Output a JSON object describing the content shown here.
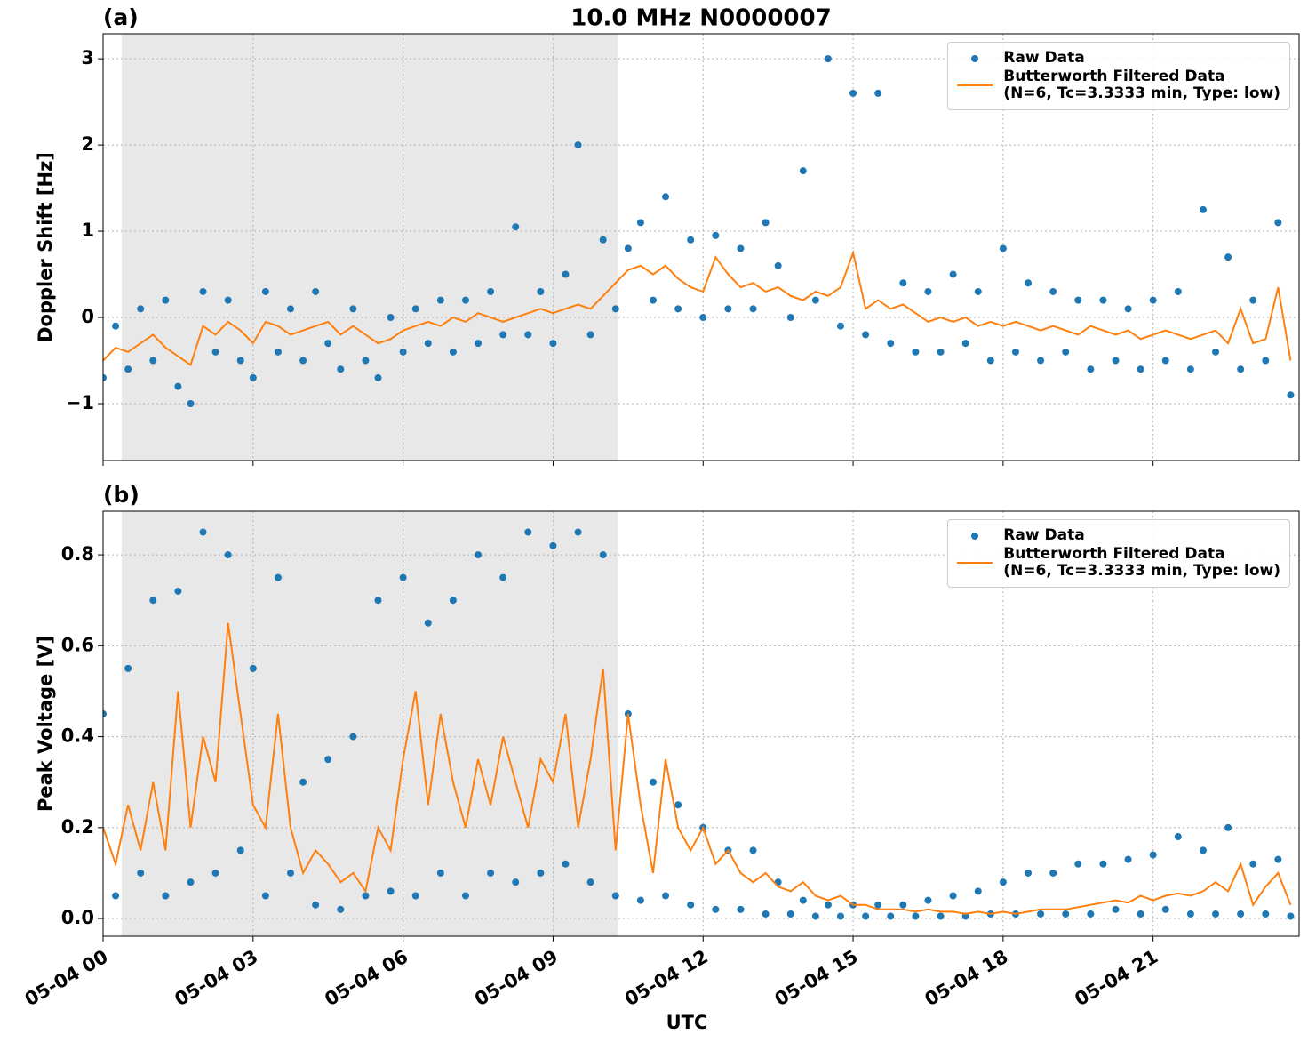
{
  "chart_data": [
    {
      "type": "scatter+line",
      "title": "10.0 MHz N0000007",
      "panel_label": "(a)",
      "ylabel": "Doppler Shift [Hz]",
      "xlim": [
        0,
        23.92
      ],
      "xticks": [
        0,
        3,
        6,
        9,
        12,
        15,
        18,
        21
      ],
      "ylim": [
        -1.66,
        3.29
      ],
      "yticks": [
        {
          "value": -1,
          "label": "−1"
        },
        0,
        1,
        2,
        3
      ],
      "grid": true,
      "legend": "upper right",
      "shaded_span": [
        0.37,
        10.3
      ],
      "shade_color": "#e8e8e8",
      "x": [
        0,
        0.25,
        0.5,
        0.75,
        1,
        1.25,
        1.5,
        1.75,
        2,
        2.25,
        2.5,
        2.75,
        3,
        3.25,
        3.5,
        3.75,
        4,
        4.25,
        4.5,
        4.75,
        5,
        5.25,
        5.5,
        5.75,
        6,
        6.25,
        6.5,
        6.75,
        7,
        7.25,
        7.5,
        7.75,
        8,
        8.25,
        8.5,
        8.75,
        9,
        9.25,
        9.5,
        9.75,
        10,
        10.25,
        10.5,
        10.75,
        11,
        11.25,
        11.5,
        11.75,
        12,
        12.25,
        12.5,
        12.75,
        13,
        13.25,
        13.5,
        13.75,
        14,
        14.25,
        14.5,
        14.75,
        15,
        15.25,
        15.5,
        15.75,
        16,
        16.25,
        16.5,
        16.75,
        17,
        17.25,
        17.5,
        17.75,
        18,
        18.25,
        18.5,
        18.75,
        19,
        19.25,
        19.5,
        19.75,
        20,
        20.25,
        20.5,
        20.75,
        21,
        21.25,
        21.5,
        21.75,
        22,
        22.25,
        22.5,
        22.75,
        23,
        23.25,
        23.5,
        23.75
      ],
      "series": [
        {
          "name": "Raw Data",
          "color": "#1f77b4",
          "style": "dots",
          "values": [
            -0.7,
            -0.1,
            -0.6,
            0.1,
            -0.5,
            0.2,
            -0.8,
            -1.0,
            0.3,
            -0.4,
            0.2,
            -0.5,
            -0.7,
            0.3,
            -0.4,
            0.1,
            -0.5,
            0.3,
            -0.3,
            -0.6,
            0.1,
            -0.5,
            -0.7,
            0,
            -0.4,
            0.1,
            -0.3,
            0.2,
            -0.4,
            0.2,
            -0.3,
            0.3,
            -0.2,
            1.05,
            -0.2,
            0.3,
            -0.3,
            0.5,
            2.0,
            -0.2,
            0.9,
            0.1,
            0.8,
            1.1,
            0.2,
            1.4,
            0.1,
            0.9,
            0,
            0.95,
            0.1,
            0.8,
            0.1,
            1.1,
            0.6,
            0,
            1.7,
            0.2,
            3.0,
            -0.1,
            2.6,
            -0.2,
            2.6,
            -0.3,
            0.4,
            -0.4,
            0.3,
            -0.4,
            0.5,
            -0.3,
            0.3,
            -0.5,
            0.8,
            -0.4,
            0.4,
            -0.5,
            0.3,
            -0.4,
            0.2,
            -0.6,
            0.2,
            -0.5,
            0.1,
            -0.6,
            0.2,
            -0.5,
            0.3,
            -0.6,
            1.25,
            -0.4,
            0.7,
            -0.6,
            0.2,
            -0.5,
            1.1,
            -0.9
          ]
        },
        {
          "name": "Butterworth Filtered Data\n(N=6, Tc=3.3333 min, Type: low)",
          "color": "#ff7f0e",
          "style": "line",
          "values": [
            -0.5,
            -0.35,
            -0.4,
            -0.3,
            -0.2,
            -0.35,
            -0.45,
            -0.55,
            -0.1,
            -0.2,
            -0.05,
            -0.15,
            -0.3,
            -0.05,
            -0.1,
            -0.2,
            -0.15,
            -0.1,
            -0.05,
            -0.2,
            -0.1,
            -0.2,
            -0.3,
            -0.25,
            -0.15,
            -0.1,
            -0.05,
            -0.1,
            0,
            -0.05,
            0.05,
            0,
            -0.05,
            0,
            0.05,
            0.1,
            0.05,
            0.1,
            0.15,
            0.1,
            0.25,
            0.4,
            0.55,
            0.6,
            0.5,
            0.6,
            0.45,
            0.35,
            0.3,
            0.7,
            0.5,
            0.35,
            0.4,
            0.3,
            0.35,
            0.25,
            0.2,
            0.3,
            0.25,
            0.35,
            0.75,
            0.1,
            0.2,
            0.1,
            0.15,
            0.05,
            -0.05,
            0,
            -0.05,
            0,
            -0.1,
            -0.05,
            -0.1,
            -0.05,
            -0.1,
            -0.15,
            -0.1,
            -0.15,
            -0.2,
            -0.1,
            -0.15,
            -0.2,
            -0.15,
            -0.25,
            -0.2,
            -0.15,
            -0.2,
            -0.25,
            -0.2,
            -0.15,
            -0.3,
            0.1,
            -0.3,
            -0.25,
            0.35,
            -0.5
          ]
        }
      ]
    },
    {
      "type": "scatter+line",
      "panel_label": "(b)",
      "ylabel": "Peak Voltage [V]",
      "xlabel": "UTC",
      "xlim": [
        0,
        23.92
      ],
      "xticks": [
        {
          "value": 0,
          "label": "05-04 00"
        },
        {
          "value": 3,
          "label": "05-04 03"
        },
        {
          "value": 6,
          "label": "05-04 06"
        },
        {
          "value": 9,
          "label": "05-04 09"
        },
        {
          "value": 12,
          "label": "05-04 12"
        },
        {
          "value": 15,
          "label": "05-04 15"
        },
        {
          "value": 18,
          "label": "05-04 18"
        },
        {
          "value": 21,
          "label": "05-04 21"
        }
      ],
      "ylim": [
        -0.039,
        0.896
      ],
      "yticks": [
        {
          "value": 0,
          "label": "0.0"
        },
        0.2,
        0.4,
        0.6,
        0.8
      ],
      "grid": true,
      "legend": "upper right",
      "shaded_span": [
        0.37,
        10.3
      ],
      "shade_color": "#e8e8e8",
      "x": [
        0,
        0.25,
        0.5,
        0.75,
        1,
        1.25,
        1.5,
        1.75,
        2,
        2.25,
        2.5,
        2.75,
        3,
        3.25,
        3.5,
        3.75,
        4,
        4.25,
        4.5,
        4.75,
        5,
        5.25,
        5.5,
        5.75,
        6,
        6.25,
        6.5,
        6.75,
        7,
        7.25,
        7.5,
        7.75,
        8,
        8.25,
        8.5,
        8.75,
        9,
        9.25,
        9.5,
        9.75,
        10,
        10.25,
        10.5,
        10.75,
        11,
        11.25,
        11.5,
        11.75,
        12,
        12.25,
        12.5,
        12.75,
        13,
        13.25,
        13.5,
        13.75,
        14,
        14.25,
        14.5,
        14.75,
        15,
        15.25,
        15.5,
        15.75,
        16,
        16.25,
        16.5,
        16.75,
        17,
        17.25,
        17.5,
        17.75,
        18,
        18.25,
        18.5,
        18.75,
        19,
        19.25,
        19.5,
        19.75,
        20,
        20.25,
        20.5,
        20.75,
        21,
        21.25,
        21.5,
        21.75,
        22,
        22.25,
        22.5,
        22.75,
        23,
        23.25,
        23.5,
        23.75
      ],
      "series": [
        {
          "name": "Raw Data",
          "color": "#1f77b4",
          "style": "dots",
          "values": [
            0.45,
            0.05,
            0.55,
            0.1,
            0.7,
            0.05,
            0.72,
            0.08,
            0.85,
            0.1,
            0.8,
            0.15,
            0.55,
            0.05,
            0.75,
            0.1,
            0.3,
            0.03,
            0.35,
            0.02,
            0.4,
            0.05,
            0.7,
            0.06,
            0.75,
            0.05,
            0.65,
            0.1,
            0.7,
            0.05,
            0.8,
            0.1,
            0.75,
            0.08,
            0.85,
            0.1,
            0.82,
            0.12,
            0.85,
            0.08,
            0.8,
            0.05,
            0.45,
            0.04,
            0.3,
            0.05,
            0.25,
            0.03,
            0.2,
            0.02,
            0.15,
            0.02,
            0.15,
            0.01,
            0.08,
            0.01,
            0.04,
            0.005,
            0.03,
            0.005,
            0.03,
            0.005,
            0.03,
            0.005,
            0.03,
            0.005,
            0.04,
            0.005,
            0.05,
            0.005,
            0.06,
            0.01,
            0.08,
            0.01,
            0.1,
            0.01,
            0.1,
            0.01,
            0.12,
            0.01,
            0.12,
            0.02,
            0.13,
            0.01,
            0.14,
            0.02,
            0.18,
            0.01,
            0.15,
            0.01,
            0.2,
            0.01,
            0.12,
            0.01,
            0.13,
            0.005
          ]
        },
        {
          "name": "Butterworth Filtered Data\n(N=6, Tc=3.3333 min, Type: low)",
          "color": "#ff7f0e",
          "style": "line",
          "values": [
            0.2,
            0.12,
            0.25,
            0.15,
            0.3,
            0.15,
            0.5,
            0.2,
            0.4,
            0.3,
            0.65,
            0.45,
            0.25,
            0.2,
            0.45,
            0.2,
            0.1,
            0.15,
            0.12,
            0.08,
            0.1,
            0.06,
            0.2,
            0.15,
            0.35,
            0.5,
            0.25,
            0.45,
            0.3,
            0.2,
            0.35,
            0.25,
            0.4,
            0.3,
            0.2,
            0.35,
            0.3,
            0.45,
            0.2,
            0.35,
            0.55,
            0.15,
            0.45,
            0.25,
            0.1,
            0.35,
            0.2,
            0.15,
            0.2,
            0.12,
            0.15,
            0.1,
            0.08,
            0.1,
            0.07,
            0.06,
            0.08,
            0.05,
            0.04,
            0.05,
            0.03,
            0.03,
            0.02,
            0.02,
            0.02,
            0.015,
            0.02,
            0.015,
            0.015,
            0.01,
            0.015,
            0.01,
            0.015,
            0.01,
            0.015,
            0.02,
            0.02,
            0.02,
            0.025,
            0.03,
            0.035,
            0.04,
            0.035,
            0.05,
            0.04,
            0.05,
            0.055,
            0.05,
            0.06,
            0.08,
            0.06,
            0.12,
            0.03,
            0.07,
            0.1,
            0.03
          ]
        }
      ]
    }
  ]
}
